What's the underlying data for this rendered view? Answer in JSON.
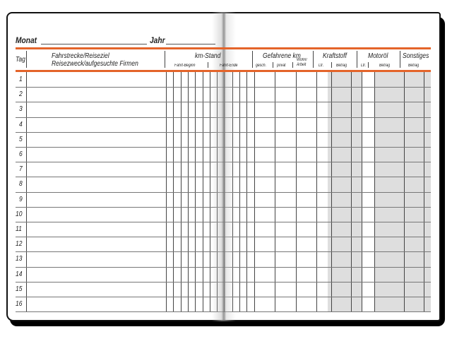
{
  "header": {
    "month_label": "Monat",
    "year_label": "Jahr"
  },
  "columns": {
    "day": "Tag",
    "route": "Fahrstrecke/Reiseziel",
    "purpose": "Reisezweck/aufgesuchte Firmen",
    "km_stand": "km-Stand",
    "trip_start": "Fahrt-Beginn",
    "trip_end": "Fahrt-Ende",
    "km_driven": "Gefahrene km",
    "business": "gesch.",
    "private": "privat",
    "commute": "Wohn/ Arbeit",
    "fuel": "Kraftstoff",
    "fuel_liters": "Ltr.",
    "fuel_amount": "Betrag",
    "oil": "Motoröl",
    "oil_liters": "Ltr.",
    "oil_amount": "Betrag",
    "other": "Sonstiges",
    "other_amount": "Betrag"
  },
  "rows": [
    "1",
    "2",
    "3",
    "4",
    "5",
    "6",
    "7",
    "8",
    "9",
    "10",
    "11",
    "12",
    "13",
    "14",
    "15",
    "16"
  ],
  "colors": {
    "accent": "#e4642a",
    "shaded": "#dedede"
  }
}
